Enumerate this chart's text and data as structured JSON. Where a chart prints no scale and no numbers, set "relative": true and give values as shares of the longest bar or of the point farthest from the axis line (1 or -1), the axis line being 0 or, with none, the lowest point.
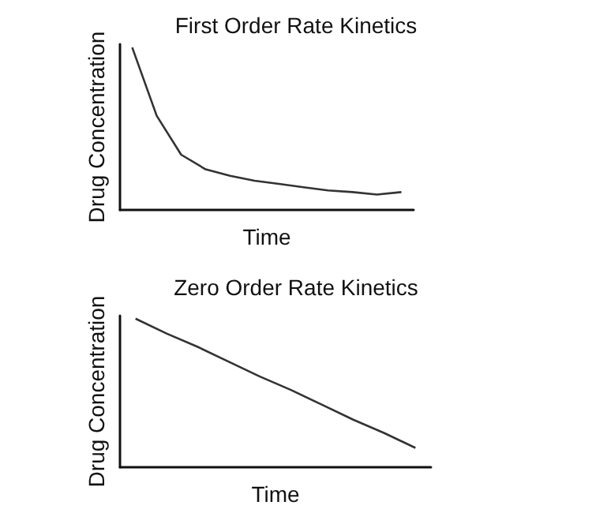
{
  "chart_data": [
    {
      "type": "line",
      "title": "First Order Rate Kinetics",
      "xlabel": "Time",
      "ylabel": "Drug Concentration",
      "relative": true,
      "marker": "none",
      "grid": false,
      "categories": [
        null,
        null,
        null,
        null,
        null,
        null,
        null,
        null,
        null,
        null,
        null,
        null
      ],
      "series": [
        {
          "color": "#333333",
          "values": [
            1.0,
            0.58,
            0.34,
            0.25,
            0.21,
            0.18,
            0.16,
            0.14,
            0.12,
            0.11,
            0.095,
            0.11
          ]
        }
      ]
    },
    {
      "type": "line",
      "title": "Zero Order Rate Kinetics",
      "xlabel": "Time",
      "ylabel": "Drug Concentration",
      "relative": true,
      "marker": "none",
      "grid": false,
      "categories": [
        null,
        null,
        null,
        null,
        null,
        null,
        null,
        null,
        null,
        null
      ],
      "series": [
        {
          "color": "#333333",
          "values": [
            1.0,
            0.9,
            0.81,
            0.71,
            0.61,
            0.52,
            0.42,
            0.32,
            0.23,
            0.13
          ]
        }
      ]
    }
  ]
}
